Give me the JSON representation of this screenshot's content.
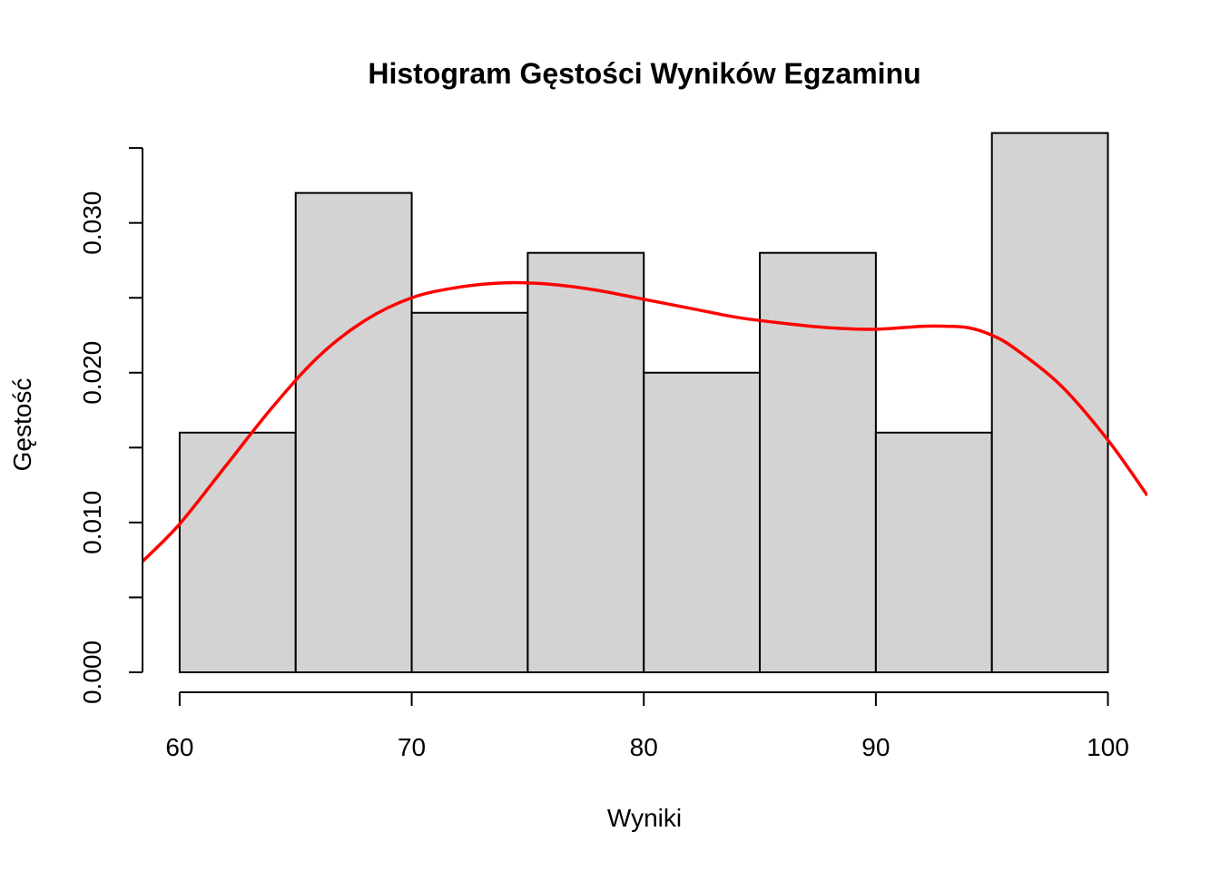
{
  "chart_data": {
    "type": "bar",
    "title": "Histogram Gęstości Wyników Egzaminu",
    "xlabel": "Wyniki",
    "ylabel": "Gęstość",
    "bins": [
      {
        "from": 60,
        "to": 65,
        "density": 0.016
      },
      {
        "from": 65,
        "to": 70,
        "density": 0.032
      },
      {
        "from": 70,
        "to": 75,
        "density": 0.024
      },
      {
        "from": 75,
        "to": 80,
        "density": 0.028
      },
      {
        "from": 80,
        "to": 85,
        "density": 0.02
      },
      {
        "from": 85,
        "to": 90,
        "density": 0.028
      },
      {
        "from": 90,
        "to": 95,
        "density": 0.016
      },
      {
        "from": 95,
        "to": 100,
        "density": 0.036
      }
    ],
    "density_curve": {
      "x": [
        58.4,
        60,
        62,
        64,
        66,
        68,
        70,
        72,
        74,
        76,
        78,
        80,
        82,
        84,
        86,
        88,
        90,
        92,
        93,
        94,
        95,
        96,
        98,
        100,
        101.7
      ],
      "y": [
        0.0074,
        0.0099,
        0.0138,
        0.0177,
        0.0211,
        0.0235,
        0.025,
        0.0257,
        0.026,
        0.0259,
        0.0255,
        0.0249,
        0.0243,
        0.0237,
        0.0233,
        0.023,
        0.0229,
        0.0231,
        0.0231,
        0.023,
        0.0225,
        0.0216,
        0.0191,
        0.0155,
        0.0118
      ]
    },
    "x_ticks": [
      60,
      70,
      80,
      90,
      100
    ],
    "x_tick_labels": [
      "60",
      "70",
      "80",
      "90",
      "100"
    ],
    "y_ticks": [
      0.0,
      0.005,
      0.01,
      0.015,
      0.02,
      0.025,
      0.03,
      0.035
    ],
    "y_tick_labels": [
      "0.000",
      "",
      "0.010",
      "",
      "0.020",
      "",
      "0.030",
      ""
    ],
    "xlim": [
      58.4,
      101.7
    ],
    "ylim": [
      0,
      0.0364
    ],
    "grid": false,
    "legend": "none",
    "colors": {
      "bar_fill": "#d3d3d3",
      "bar_stroke": "#000000",
      "curve": "#ff0000",
      "axis": "#000000"
    }
  }
}
